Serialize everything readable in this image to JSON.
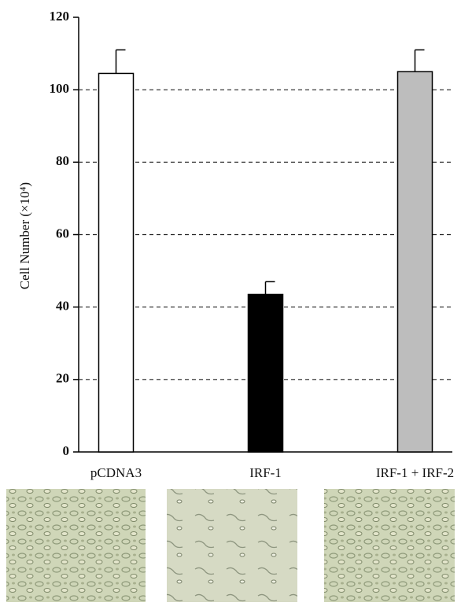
{
  "chart_data": {
    "type": "bar",
    "y_label": "Cell Number (×10⁴)",
    "categories": [
      "pCDNA3",
      "IRF-1",
      "IRF-1 + IRF-2"
    ],
    "values": [
      104.5,
      43.5,
      105
    ],
    "errors": [
      6.5,
      3.5,
      6
    ],
    "colors": [
      "#ffffff",
      "#000000",
      "#bdbdbd"
    ],
    "ylim": [
      0,
      120
    ],
    "yticks": [
      0,
      20,
      40,
      60,
      80,
      100,
      120
    ],
    "grid": true
  }
}
